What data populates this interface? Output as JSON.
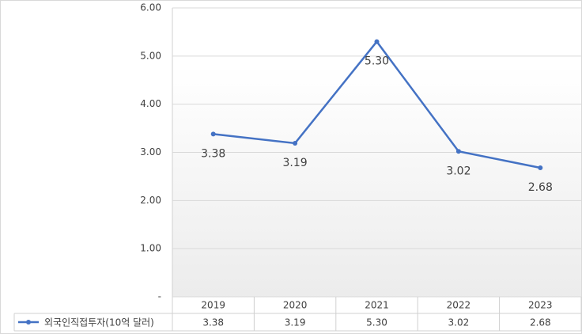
{
  "chart_data": {
    "type": "line",
    "categories": [
      "2019",
      "2020",
      "2021",
      "2022",
      "2023"
    ],
    "series": [
      {
        "name": "외국인직접투자(10억 달러)",
        "color": "#4472c4",
        "values": [
          3.38,
          3.19,
          5.3,
          3.02,
          2.68
        ],
        "value_labels": [
          "3.38",
          "3.19",
          "5.30",
          "3.02",
          "2.68"
        ]
      }
    ],
    "ylim": [
      0,
      6
    ],
    "yticks": [
      {
        "value": 0,
        "label": "-"
      },
      {
        "value": 1,
        "label": "1.00"
      },
      {
        "value": 2,
        "label": "2.00"
      },
      {
        "value": 3,
        "label": "3.00"
      },
      {
        "value": 4,
        "label": "4.00"
      },
      {
        "value": 5,
        "label": "5.00"
      },
      {
        "value": 6,
        "label": "6.00"
      }
    ],
    "grid": true,
    "legend": "bottom"
  }
}
